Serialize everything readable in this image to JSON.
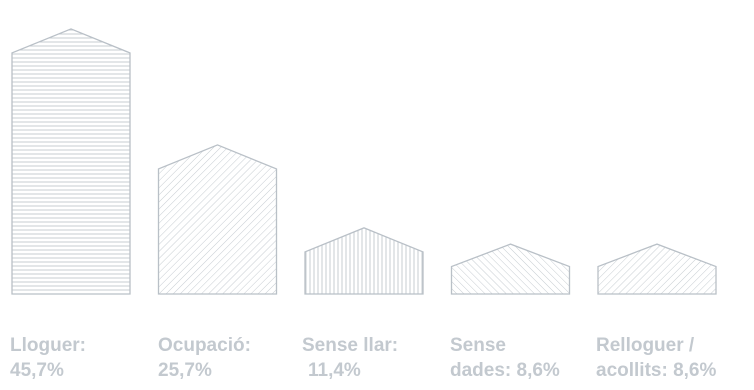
{
  "chart_data": {
    "type": "bar",
    "categories": [
      "Lloguer",
      "Ocupació",
      "Sense llar",
      "Sense dades",
      "Relloguer / acollits"
    ],
    "values": [
      45.7,
      25.7,
      11.4,
      8.6,
      8.6
    ],
    "value_unit": "%",
    "labels": [
      {
        "line1": "Lloguer:",
        "line2": "45,7%"
      },
      {
        "line1": "Ocupació:",
        "line2": "25,7%"
      },
      {
        "line1": "Sense llar:",
        "line2": "11,4%"
      },
      {
        "line1": "Sense",
        "line2": "dades: 8,6%"
      },
      {
        "line1": "Relloguer /",
        "line2": "acollits: 8,6%"
      }
    ],
    "hatch_patterns": [
      "horizontal",
      "diagonal-right",
      "vertical",
      "diagonal-left",
      "diagonal-right"
    ],
    "colors": {
      "outline": "#b9c0c7",
      "hatch": "#c7cdd2",
      "label": "#c3c9cf",
      "background": "#ffffff"
    },
    "title": "",
    "xlabel": "",
    "ylabel": "",
    "grid": false,
    "legend": "none"
  }
}
